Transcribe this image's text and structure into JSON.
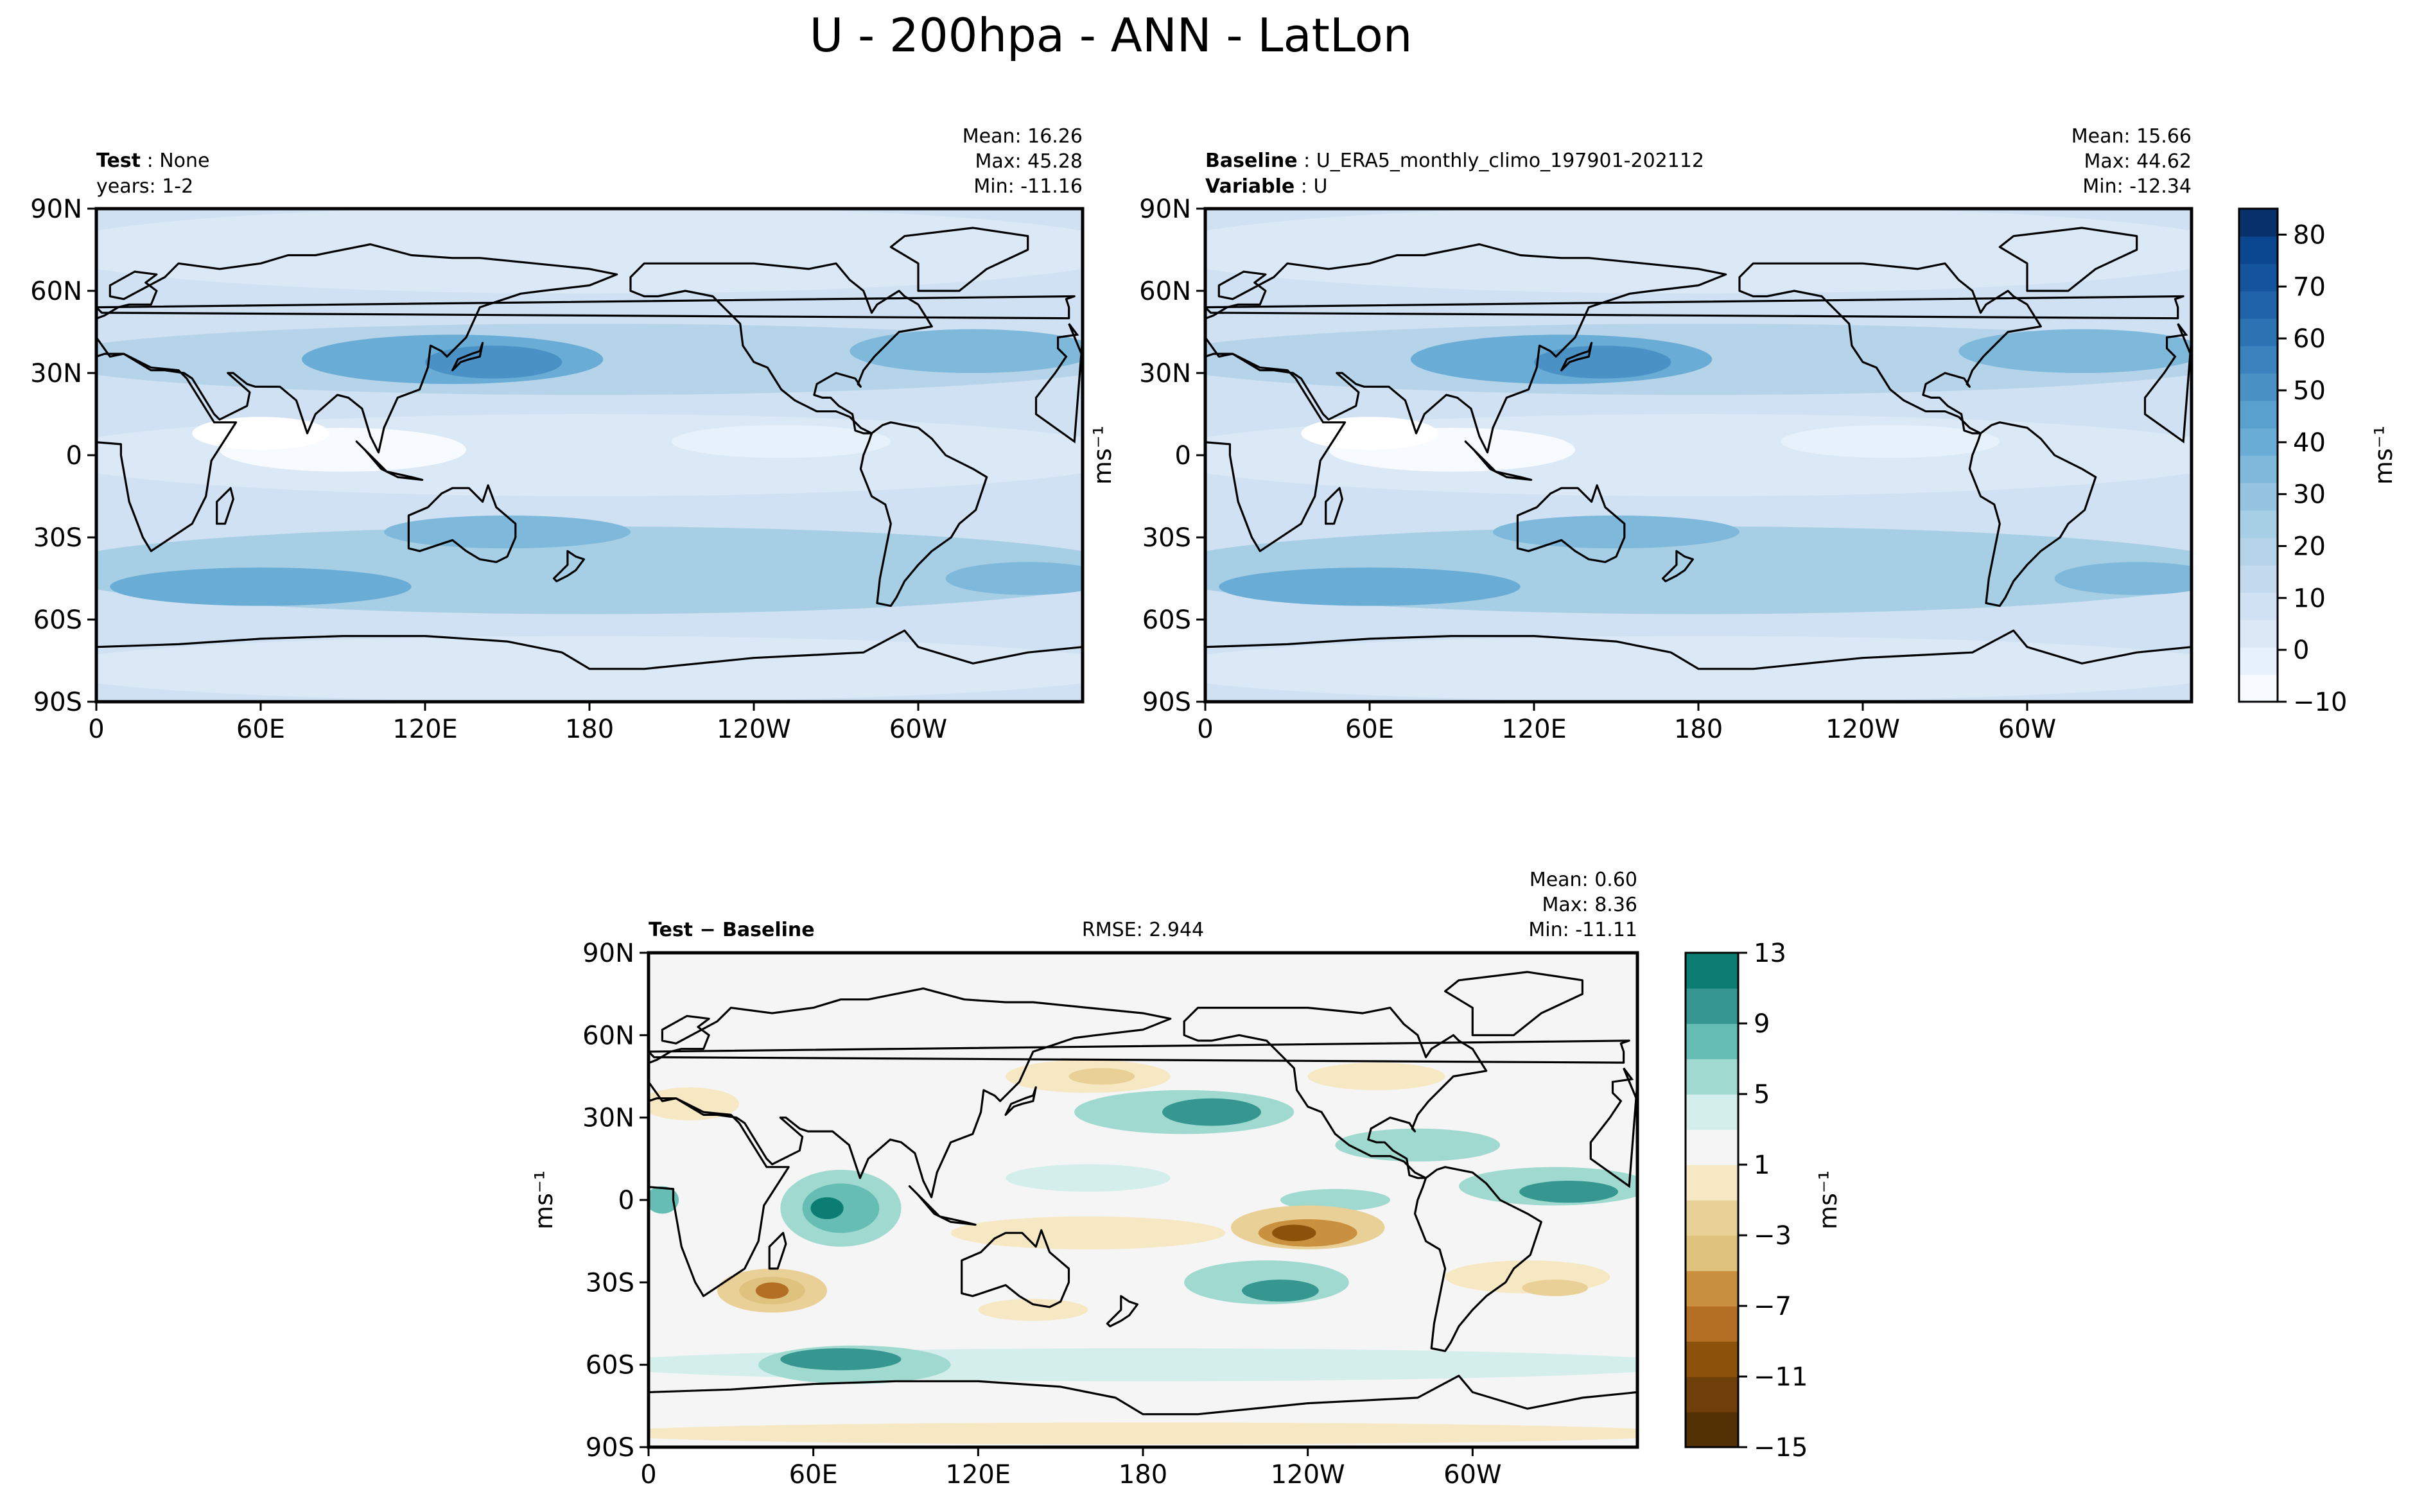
{
  "figure": {
    "title": "U - 200hpa - ANN - LatLon"
  },
  "colors": {
    "seq_blues": [
      "#f7fbff",
      "#e7f1fb",
      "#dbe9f6",
      "#cfe1f2",
      "#c3daee",
      "#b6d4e9",
      "#a6cee4",
      "#94c4df",
      "#7eb8da",
      "#69acd5",
      "#5aa0ce",
      "#4a91c6",
      "#3a82bd",
      "#2c73b4",
      "#2063ab",
      "#14549f",
      "#0b4691",
      "#08306b"
    ],
    "diff_brbg": [
      "#01665e",
      "#0b7d73",
      "#35978f",
      "#66bdb3",
      "#a0d9d0",
      "#d4efeb",
      "#f5f5f5",
      "#f6e8c3",
      "#e9d096",
      "#dfc27d",
      "#c99040",
      "#b56f24",
      "#8c510a",
      "#6e3f08",
      "#543005"
    ],
    "map_border": "#000000",
    "land_line": "#000000"
  },
  "chart_data": [
    {
      "type": "heatmap",
      "panel": "test",
      "header_left": [
        {
          "bold": "Test",
          "text": "None"
        },
        {
          "bold": "",
          "text": "years: 1-2"
        }
      ],
      "stats": [
        "Mean: 16.26",
        "Max: 45.28",
        "Min: -11.16"
      ],
      "stats_values": {
        "mean": 16.26,
        "max": 45.28,
        "min": -11.16
      },
      "xticks": [
        "0",
        "60E",
        "120E",
        "180",
        "120W",
        "60W"
      ],
      "yticks": [
        "90N",
        "60N",
        "30N",
        "0",
        "30S",
        "60S",
        "90S"
      ],
      "xlim": [
        0,
        360
      ],
      "ylim": [
        -90,
        90
      ],
      "unit": "ms⁻¹"
    },
    {
      "type": "heatmap",
      "panel": "baseline",
      "header_left": [
        {
          "bold": "Baseline",
          "text": "U_ERA5_monthly_climo_197901-202112"
        },
        {
          "bold": "Variable",
          "text": "U"
        }
      ],
      "stats": [
        "Mean: 15.66",
        "Max: 44.62",
        "Min: -12.34"
      ],
      "stats_values": {
        "mean": 15.66,
        "max": 44.62,
        "min": -12.34
      },
      "xticks": [
        "0",
        "60E",
        "120E",
        "180",
        "120W",
        "60W"
      ],
      "yticks": [
        "90N",
        "60N",
        "30N",
        "0",
        "30S",
        "60S",
        "90S"
      ],
      "ylabel": "ms⁻¹",
      "colorbar": {
        "min": -10,
        "max": 85,
        "ticks": [
          "80",
          "70",
          "60",
          "50",
          "40",
          "30",
          "20",
          "10",
          "0",
          "−10"
        ],
        "tick_values": [
          80,
          70,
          60,
          50,
          40,
          30,
          20,
          10,
          0,
          -10
        ],
        "label": "ms⁻¹"
      }
    },
    {
      "type": "heatmap",
      "panel": "difference",
      "header_left": [
        {
          "bold": "Test − Baseline",
          "text": ""
        }
      ],
      "rmse": "RMSE: 2.944",
      "stats": [
        "Mean:  0.60",
        "Max:  8.36",
        "Min: -11.11"
      ],
      "stats_values": {
        "mean": 0.6,
        "max": 8.36,
        "min": -11.11,
        "rmse": 2.944
      },
      "xticks": [
        "0",
        "60E",
        "120E",
        "180",
        "120W",
        "60W"
      ],
      "yticks": [
        "90N",
        "60N",
        "30N",
        "0",
        "30S",
        "60S",
        "90S"
      ],
      "ylabel": "ms⁻¹",
      "colorbar": {
        "min": -15,
        "max": 13,
        "levels": [
          -15,
          -13,
          -11,
          -9,
          -7,
          -5,
          -3,
          -1,
          1,
          3,
          5,
          7,
          9,
          11,
          13
        ],
        "ticks": [
          "13",
          "9",
          "5",
          "1",
          "−3",
          "−7",
          "−11",
          "−15"
        ],
        "tick_values": [
          13,
          9,
          5,
          1,
          -3,
          -7,
          -11,
          -15
        ],
        "label": "ms⁻¹"
      }
    }
  ]
}
